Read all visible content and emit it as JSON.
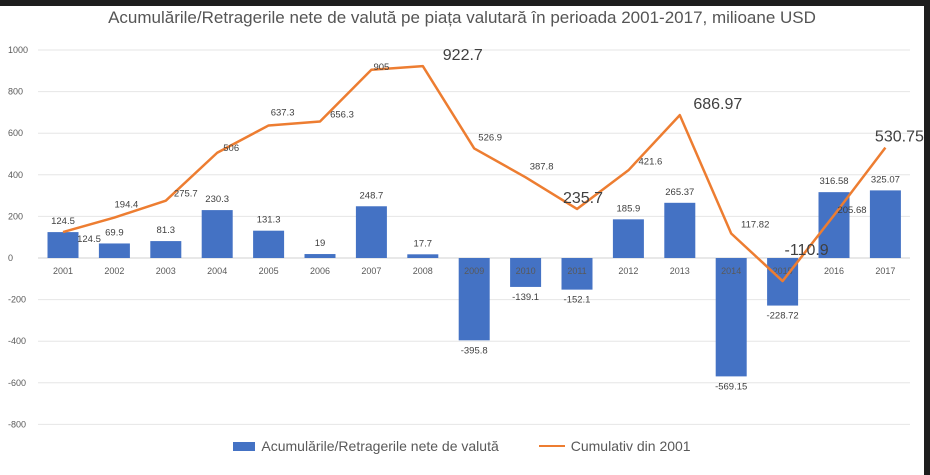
{
  "chart_data": {
    "type": "bar+line",
    "title": "Acumulările/Retragerile  nete de valută pe piața valutară în perioada 2001-2017, milioane USD",
    "categories": [
      "2001",
      "2002",
      "2003",
      "2004",
      "2005",
      "2006",
      "2007",
      "2008",
      "2009",
      "2010",
      "2011",
      "2012",
      "2013",
      "2014",
      "2015",
      "2016",
      "2017"
    ],
    "ylim": [
      -800,
      1000
    ],
    "yticks": [
      "1000",
      "800",
      "600",
      "400",
      "200",
      "0",
      "-200",
      "-400",
      "-600",
      "-800"
    ],
    "grid": true,
    "legend_position": "bottom",
    "series": [
      {
        "name": "Acumulările/Retragerile nete de valută",
        "type": "bar",
        "color": "#4472c4",
        "values": [
          124.5,
          69.9,
          81.3,
          230.3,
          131.3,
          19,
          248.7,
          17.7,
          -395.8,
          -139.1,
          -152.1,
          185.9,
          265.37,
          -569.15,
          -228.72,
          316.58,
          325.07
        ],
        "labels": [
          "124.5",
          "69.9",
          "81.3",
          "230.3",
          "131.3",
          "19",
          "248.7",
          "17.7",
          "-395.8",
          "-139.1",
          "-152.1",
          "185.9",
          "265.37",
          "-569.15",
          "-228.72",
          "316.58",
          "325.07"
        ]
      },
      {
        "name": "Cumulativ din 2001",
        "type": "line",
        "color": "#ed7d31",
        "values": [
          124.5,
          194.4,
          275.7,
          506,
          637.3,
          656.3,
          905,
          922.7,
          526.9,
          387.8,
          235.7,
          421.6,
          686.97,
          117.82,
          -110.9,
          205.68,
          530.75
        ],
        "labels": [
          "124.5",
          "194.4",
          "275.7",
          "506",
          "637.3",
          "656.3",
          "905",
          "922.7",
          "526.9",
          "387.8",
          "235.7",
          "421.6",
          "686.97",
          "117.82",
          "-110.9",
          "205.68",
          "530.75"
        ]
      }
    ]
  }
}
